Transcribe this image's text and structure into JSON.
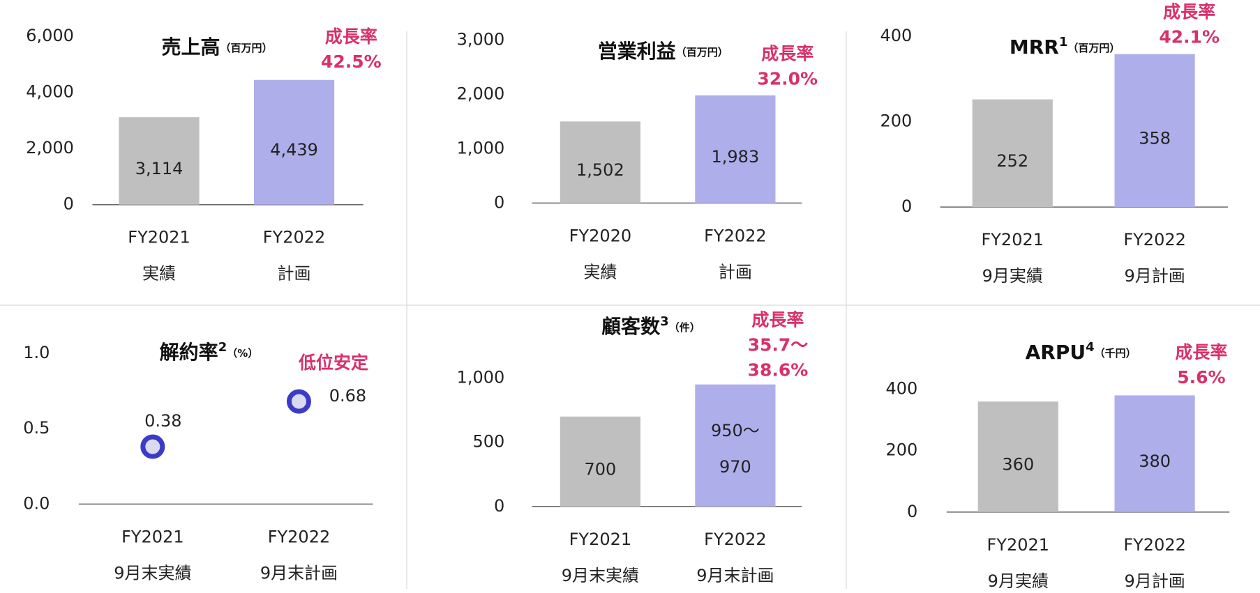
{
  "chart_data": [
    {
      "type": "bar",
      "title": "売上高",
      "unit": "（百万円）",
      "note": [
        "成長率",
        "42.5%"
      ],
      "categories": [
        [
          "FY2021",
          "実績"
        ],
        [
          "FY2022",
          "計画"
        ]
      ],
      "values": [
        3114,
        4439
      ],
      "value_labels": [
        "3,114",
        "4,439"
      ],
      "colors": [
        "#bfbfbf",
        "#aeaeeb"
      ],
      "ylim": [
        0,
        6000
      ],
      "yticks": [
        0,
        {
          "value": 2000,
          "label": "2,000"
        },
        {
          "value": 4000,
          "label": "4,000"
        },
        {
          "value": 6000,
          "label": "6,000"
        }
      ]
    },
    {
      "type": "bar",
      "title": "営業利益",
      "unit": "（百万円）",
      "note": [
        "成長率",
        "32.0%"
      ],
      "categories": [
        [
          "FY2020",
          "実績"
        ],
        [
          "FY2022",
          "計画"
        ]
      ],
      "values": [
        1502,
        1983
      ],
      "value_labels": [
        "1,502",
        "1,983"
      ],
      "colors": [
        "#bfbfbf",
        "#aeaeeb"
      ],
      "ylim": [
        0,
        3000
      ],
      "yticks": [
        0,
        {
          "value": 1000,
          "label": "1,000"
        },
        {
          "value": 2000,
          "label": "2,000"
        },
        {
          "value": 3000,
          "label": "3,000"
        }
      ]
    },
    {
      "type": "bar",
      "title": "MRR",
      "superscript": "1",
      "unit": "（百万円）",
      "note": [
        "成長率",
        "42.1%"
      ],
      "categories": [
        [
          "FY2021",
          "9月実績"
        ],
        [
          "FY2022",
          "9月計画"
        ]
      ],
      "values": [
        252,
        358
      ],
      "colors": [
        "#bfbfbf",
        "#aeaeeb"
      ],
      "ylim": [
        0,
        400
      ],
      "yticks": [
        0,
        200,
        400
      ]
    },
    {
      "type": "scatter",
      "title": "解約率",
      "superscript": "2",
      "unit": "（%）",
      "note": [
        "低位安定"
      ],
      "categories": [
        [
          "FY2021",
          "9月末実績"
        ],
        [
          "FY2022",
          "9月末計画"
        ]
      ],
      "values": [
        0.38,
        0.68
      ],
      "color": "#3b3bc8",
      "ylim": [
        0,
        1
      ],
      "yticks": [
        {
          "value": 0,
          "label": "0.0"
        },
        0.5,
        {
          "value": 1,
          "label": "1.0"
        }
      ]
    },
    {
      "type": "bar",
      "title": "顧客数",
      "superscript": "3",
      "unit": "（件）",
      "note": [
        "成長率",
        "35.7〜",
        "38.6%"
      ],
      "categories": [
        [
          "FY2021",
          "9月末実績"
        ],
        [
          "FY2022",
          "9月末計画"
        ]
      ],
      "values": [
        700,
        950
      ],
      "value_labels": [
        [
          "700"
        ],
        [
          "950〜",
          "970"
        ]
      ],
      "colors": [
        "#bfbfbf",
        "#aeaeeb"
      ],
      "ylim": [
        0,
        1000
      ],
      "yticks": [
        0,
        500,
        {
          "value": 1000,
          "label": "1,000"
        }
      ]
    },
    {
      "type": "bar",
      "title": "ARPU",
      "superscript": "4",
      "unit": "（千円）",
      "note": [
        "成長率",
        "5.6%"
      ],
      "categories": [
        [
          "FY2021",
          "9月実績"
        ],
        [
          "FY2022",
          "9月計画"
        ]
      ],
      "values": [
        360,
        380
      ],
      "colors": [
        "#bfbfbf",
        "#aeaeeb"
      ],
      "ylim": [
        0,
        400
      ],
      "yticks": [
        0,
        200,
        400
      ]
    }
  ]
}
